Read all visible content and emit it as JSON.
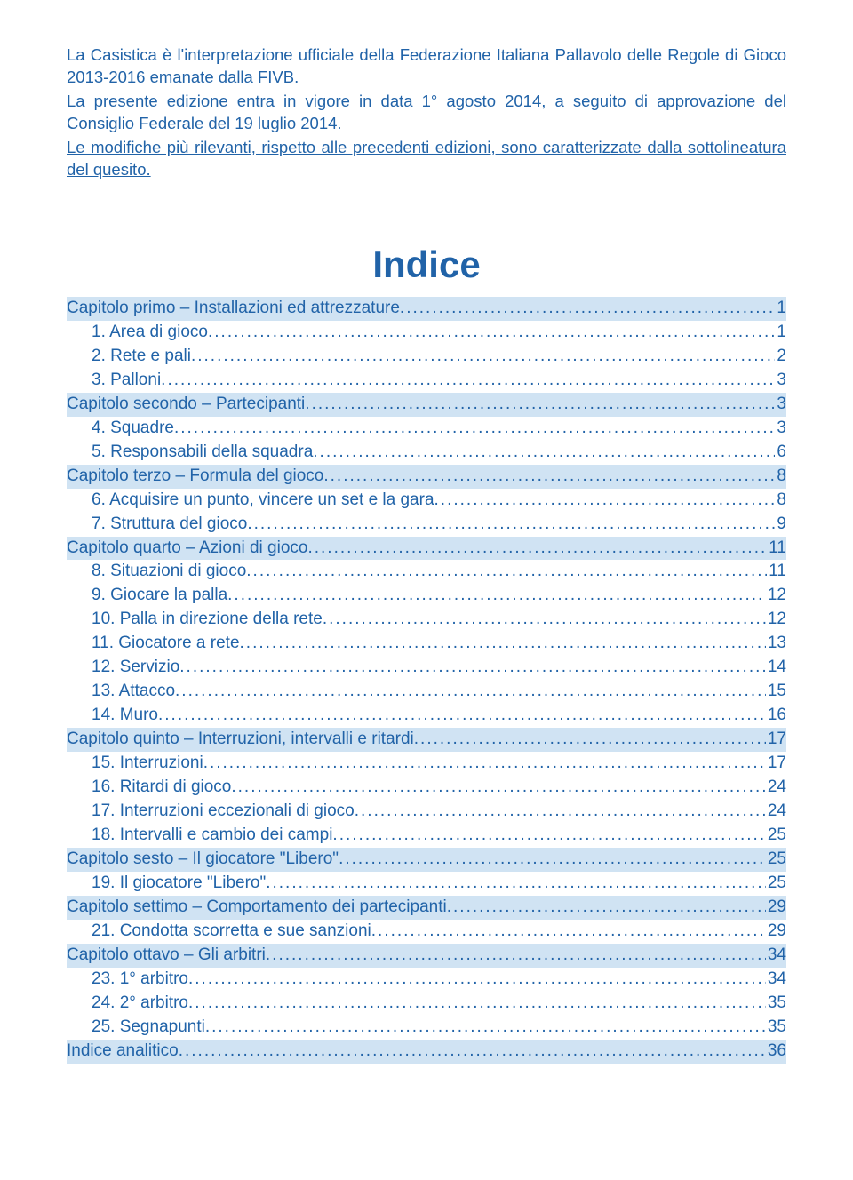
{
  "intro": {
    "p1": "La Casistica è l'interpretazione ufficiale della Federazione Italiana Pallavolo delle Regole di Gioco 2013-2016 emanate dalla FIVB.",
    "p2": "La presente edizione entra in vigore in data 1° agosto 2014, a seguito di approvazione del Consiglio Federale del 19 luglio 2014.",
    "p3": "Le modifiche più rilevanti, rispetto alle precedenti edizioni, sono caratterizzate dalla sottolineatura del quesito."
  },
  "toc_title": "Indice",
  "toc": [
    {
      "type": "chapter",
      "label": "Capitolo primo – Installazioni ed attrezzature",
      "page": "1"
    },
    {
      "type": "section",
      "label": "1.  Area di gioco",
      "page": "1"
    },
    {
      "type": "section",
      "label": "2.  Rete e pali",
      "page": "2"
    },
    {
      "type": "section",
      "label": "3.  Palloni",
      "page": "3"
    },
    {
      "type": "chapter",
      "label": "Capitolo secondo – Partecipanti",
      "page": "3"
    },
    {
      "type": "section",
      "label": "4.  Squadre",
      "page": "3"
    },
    {
      "type": "section",
      "label": "5.  Responsabili della squadra",
      "page": "6"
    },
    {
      "type": "chapter",
      "label": "Capitolo terzo – Formula del gioco",
      "page": "8"
    },
    {
      "type": "section",
      "label": "6.  Acquisire un punto, vincere un set e la gara",
      "page": "8"
    },
    {
      "type": "section",
      "label": "7.  Struttura del gioco",
      "page": "9"
    },
    {
      "type": "chapter",
      "label": "Capitolo quarto – Azioni di gioco",
      "page": "11"
    },
    {
      "type": "section",
      "label": "8.  Situazioni di gioco",
      "page": "11"
    },
    {
      "type": "section",
      "label": "9.  Giocare la palla",
      "page": "12"
    },
    {
      "type": "section",
      "label": "10.  Palla in direzione della rete",
      "page": "12"
    },
    {
      "type": "section",
      "label": "11.  Giocatore a rete",
      "page": "13"
    },
    {
      "type": "section",
      "label": "12.  Servizio",
      "page": "14"
    },
    {
      "type": "section",
      "label": "13.  Attacco",
      "page": "15"
    },
    {
      "type": "section",
      "label": "14.  Muro",
      "page": "16"
    },
    {
      "type": "chapter",
      "label": "Capitolo quinto – Interruzioni, intervalli e ritardi",
      "page": "17"
    },
    {
      "type": "section",
      "label": "15.  Interruzioni",
      "page": "17"
    },
    {
      "type": "section",
      "label": "16.  Ritardi di gioco",
      "page": "24"
    },
    {
      "type": "section",
      "label": "17.  Interruzioni eccezionali di gioco",
      "page": "24"
    },
    {
      "type": "section",
      "label": "18.  Intervalli e cambio dei campi",
      "page": "25"
    },
    {
      "type": "chapter",
      "label": "Capitolo sesto – Il giocatore \"Libero\"",
      "page": "25"
    },
    {
      "type": "section",
      "label": "19.  Il giocatore \"Libero\"",
      "page": "25"
    },
    {
      "type": "chapter",
      "label": "Capitolo settimo – Comportamento dei partecipanti",
      "page": "29"
    },
    {
      "type": "section",
      "label": "21.  Condotta scorretta e sue sanzioni",
      "page": "29"
    },
    {
      "type": "chapter",
      "label": "Capitolo ottavo – Gli arbitri",
      "page": "34"
    },
    {
      "type": "section",
      "label": "23.  1° arbitro",
      "page": "34"
    },
    {
      "type": "section",
      "label": "24.  2° arbitro",
      "page": "35"
    },
    {
      "type": "section",
      "label": "25.  Segnapunti",
      "page": "35"
    },
    {
      "type": "chapter",
      "label": "Indice analitico",
      "page": "36"
    }
  ],
  "colors": {
    "text": "#2163a8",
    "highlight_bg": "#d0e3f3",
    "page_bg": "#ffffff"
  },
  "fonts": {
    "body_size_pt": 14,
    "title_size_pt": 32
  }
}
